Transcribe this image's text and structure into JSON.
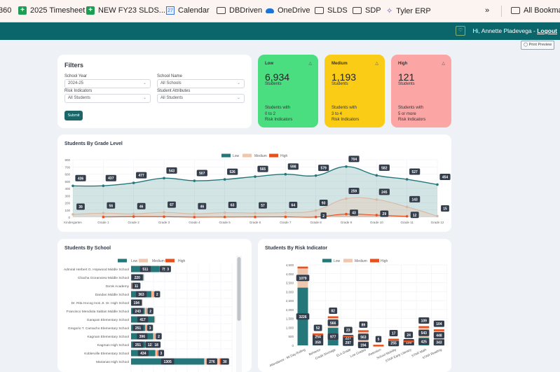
{
  "bookmarks": {
    "items": [
      {
        "label": "360",
        "icon": "none"
      },
      {
        "label": "2025 Timesheet",
        "icon": "sheets-icon"
      },
      {
        "label": "NEW FY23 SLDS...",
        "icon": "sheets-icon"
      },
      {
        "label": "Calendar",
        "icon": "calendar-icon"
      },
      {
        "label": "DBDriven",
        "icon": "folder-icon"
      },
      {
        "label": "OneDrive",
        "icon": "onedrive-icon"
      },
      {
        "label": "SLDS",
        "icon": "folder-icon"
      },
      {
        "label": "SDP",
        "icon": "folder-icon"
      },
      {
        "label": "Tyler ERP",
        "icon": "tyler-icon"
      }
    ],
    "overflow": "»",
    "all_bookmarks": "All Bookmarks"
  },
  "header": {
    "greeting": "Hi, Annette Pladevega - ",
    "logout": "Logout",
    "bell_icon": "bell-icon"
  },
  "print_preview": "Print Preview",
  "filters": {
    "title": "Filters",
    "school_year_label": "School Year",
    "school_year": "2024-25",
    "school_name_label": "School Name",
    "school_name": "All Schools",
    "risk_label": "Risk Indicators",
    "risk": "All Students",
    "attr_label": "Student Attributes",
    "attr": "All Students",
    "submit": "Submit"
  },
  "risk_cards": [
    {
      "title": "Low",
      "count": "6,934",
      "unit": "Students",
      "d1": "Students with",
      "d2": "0 to 2",
      "d3": "Risk Indicators",
      "color": "#4ade80"
    },
    {
      "title": "Medium",
      "count": "1,193",
      "unit": "Students",
      "d1": "Students with",
      "d2": "3 to 4",
      "d3": "Risk Indicators",
      "color": "#facc15"
    },
    {
      "title": "High",
      "count": "121",
      "unit": "Students",
      "d1": "Students with",
      "d2": "5 or more",
      "d3": "Risk Indicators",
      "color": "#fca5a5"
    }
  ],
  "colors": {
    "low": "#25777a",
    "medium": "#efc7ae",
    "high": "#e8501e",
    "label_bg": "#343d4b"
  },
  "chart_data": [
    {
      "type": "line",
      "title": "Students By Grade Level",
      "ylim": [
        0,
        800
      ],
      "yticks": [
        0,
        100,
        200,
        300,
        400,
        500,
        600,
        700,
        800
      ],
      "grid": true,
      "legend": "top",
      "categories": [
        "Kindergarten",
        "Grade 1",
        "Grade 2",
        "Grade 3",
        "Grade 4",
        "Grade 5",
        "Grade 6",
        "Grade 7",
        "Grade 8",
        "Grade 9",
        "Grade 10",
        "Grade 11",
        "Grade 12"
      ],
      "series": [
        {
          "name": "Low",
          "values": [
            436,
            437,
            477,
            543,
            507,
            526,
            565,
            598,
            579,
            704,
            582,
            527,
            454
          ]
        },
        {
          "name": "Medium",
          "values": [
            39,
            56,
            46,
            67,
            46,
            63,
            57,
            64,
            93,
            259,
            245,
            143,
            15
          ]
        },
        {
          "name": "High",
          "values": [
            null,
            3,
            8,
            7,
            1,
            2,
            3,
            4,
            2,
            43,
            29,
            12,
            null
          ]
        }
      ]
    },
    {
      "type": "bar",
      "orientation": "horizontal",
      "stacked": true,
      "title": "Students By School",
      "legend": "top",
      "grid": true,
      "categories": [
        "Admiral Herbert G. Hopwood Middle School",
        "Chacha Oceanview Middle School",
        "Da'ok Academy",
        "Dandan Middle School",
        "Dr. Rita Hocog Inos Jr. Sr. High School",
        "Francisco Mendiola Sablan Middle School",
        "Garapan Elementary School",
        "Gregorio T. Camacho Elementary School",
        "Kagman Elementary School",
        "Kagman High School",
        "Koblerville Elementary School",
        "Marianas High School"
      ],
      "series": [
        {
          "name": "Low",
          "values": [
            511,
            220,
            6,
            363,
            194,
            243,
            417,
            251,
            396,
            251,
            434,
            1305
          ]
        },
        {
          "name": "Medium",
          "values": [
            75,
            15,
            5,
            30,
            8,
            30,
            15,
            15,
            25,
            121,
            30,
            276
          ]
        },
        {
          "name": "High",
          "values": [
            3,
            null,
            11,
            2,
            null,
            2,
            null,
            3,
            2,
            18,
            3,
            30
          ]
        }
      ]
    },
    {
      "type": "bar",
      "stacked": true,
      "title": "Students By Risk Indicator",
      "legend": "top",
      "grid": true,
      "ylim": [
        0,
        4500
      ],
      "yticks": [
        "0",
        "500",
        "1,000",
        "1,500",
        "2,000",
        "2,500",
        "3,000",
        "3,500",
        "4,000",
        "4,500"
      ],
      "categories": [
        "Attendance - 90 Day Rolling",
        "Behavior",
        "Credit Shortage",
        "ELA Grade",
        "Low Grades",
        "Retention",
        "School Mobility",
        "STAR Early Literacy",
        "STAR Math",
        "STAR Reading"
      ],
      "series": [
        {
          "name": "Low",
          "values": [
            3226,
            359,
            977,
            297,
            194,
            20,
            255,
            100,
            425,
            343
          ]
        },
        {
          "name": "Medium",
          "values": [
            1079,
            254,
            566,
            227,
            563,
            10,
            100,
            150,
            543,
            448
          ]
        },
        {
          "name": "High",
          "values": [
            95,
            52,
            82,
            23,
            89,
            5,
            17,
            24,
            109,
            104
          ]
        }
      ]
    }
  ]
}
